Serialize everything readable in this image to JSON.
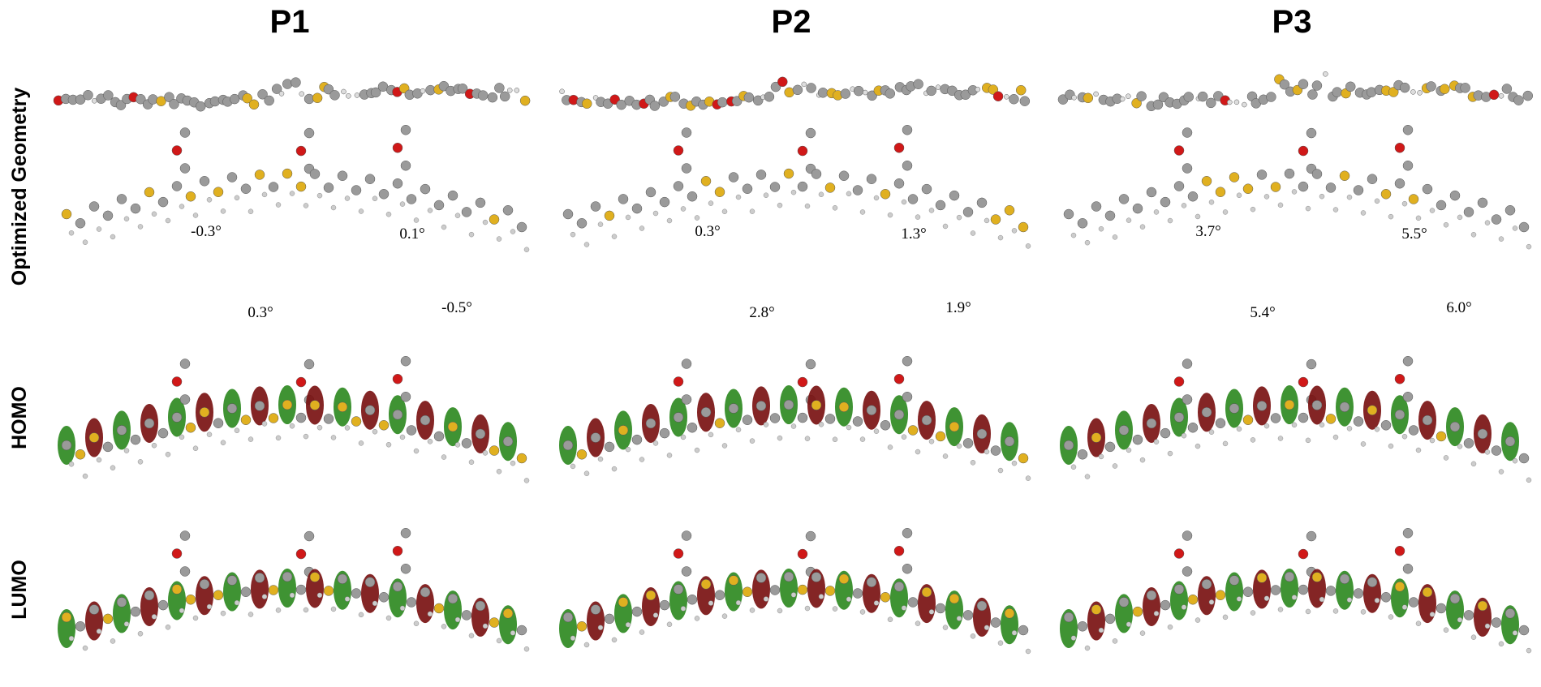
{
  "columns": [
    {
      "label": "P1",
      "angles": [
        "-0.3°",
        "0.3°",
        "0.1°",
        "-0.5°"
      ]
    },
    {
      "label": "P2",
      "angles": [
        "0.3°",
        "2.8°",
        "1.3°",
        "1.9°"
      ]
    },
    {
      "label": "P3",
      "angles": [
        "3.7°",
        "5.4°",
        "5.5°",
        "6.0°"
      ]
    }
  ],
  "row_labels": [
    "Optimized Geometry",
    "HOMO",
    "LUMO"
  ]
}
